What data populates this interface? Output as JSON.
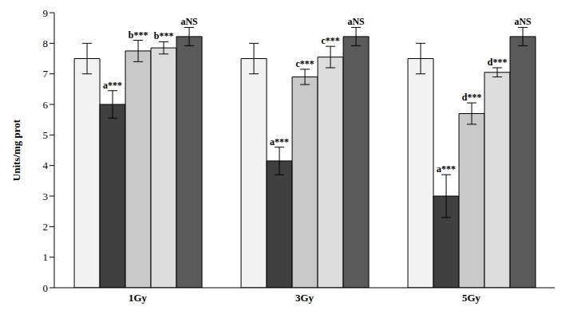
{
  "chart_data": {
    "type": "bar",
    "y_label": "Units/mg prot",
    "categories": [
      "1Gy",
      "3Gy",
      "5Gy"
    ],
    "ylim": [
      0,
      9
    ],
    "yticks": [
      0,
      1,
      2,
      3,
      4,
      5,
      6,
      7,
      8,
      9
    ],
    "grid": false,
    "series": [
      {
        "color": "#f2f2f2",
        "values": [
          7.5,
          7.5,
          7.5
        ],
        "errors": [
          0.5,
          0.5,
          0.5
        ],
        "annotations": [
          null,
          null,
          null
        ]
      },
      {
        "color": "#404040",
        "values": [
          6.0,
          4.15,
          3.0
        ],
        "errors": [
          0.45,
          0.45,
          0.7
        ],
        "annotations": [
          "a***",
          "a***",
          "a***"
        ]
      },
      {
        "color": "#c8c8c8",
        "values": [
          7.75,
          6.9,
          5.7
        ],
        "errors": [
          0.35,
          0.25,
          0.35
        ],
        "annotations": [
          "b***",
          "c***",
          "d***"
        ]
      },
      {
        "color": "#dcdcdc",
        "values": [
          7.85,
          7.55,
          7.05
        ],
        "errors": [
          0.2,
          0.35,
          0.15
        ],
        "annotations": [
          "b***",
          "c***",
          "d***"
        ]
      },
      {
        "color": "#5a5a5a",
        "values": [
          8.22,
          8.22,
          8.22
        ],
        "errors": [
          0.3,
          0.3,
          0.3
        ],
        "annotations": [
          "aNS",
          "aNS",
          "aNS"
        ]
      }
    ]
  }
}
